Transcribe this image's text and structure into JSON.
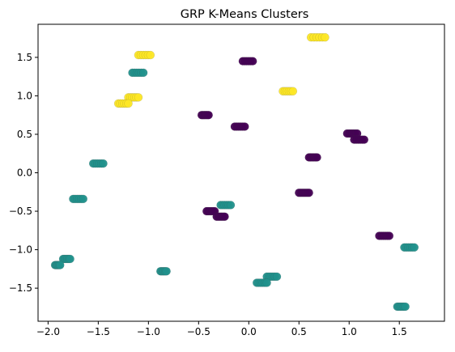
{
  "chart_data": {
    "type": "scatter",
    "title": "GRP K-Means Clusters",
    "xlabel": "",
    "ylabel": "",
    "xlim": [
      -2.1,
      1.95
    ],
    "ylim": [
      -1.93,
      1.93
    ],
    "xticks": [
      -2.0,
      -1.5,
      -1.0,
      -0.5,
      0.0,
      0.5,
      1.0,
      1.5
    ],
    "xtick_labels": [
      "−2.0",
      "−1.5",
      "−1.0",
      "−0.5",
      "0.0",
      "0.5",
      "1.0",
      "1.5"
    ],
    "yticks": [
      -1.5,
      -1.0,
      -0.5,
      0.0,
      0.5,
      1.0,
      1.5
    ],
    "ytick_labels": [
      "−1.5",
      "−1.0",
      "−0.5",
      "0.0",
      "0.5",
      "1.0",
      "1.5"
    ],
    "grid": false,
    "colors": {
      "cluster_0": "#440154",
      "cluster_1": "#21918c",
      "cluster_2": "#fde725"
    },
    "groups": [
      {
        "xmin": 0.62,
        "xmax": 0.76,
        "y": 1.76,
        "cluster": 2
      },
      {
        "xmin": -1.1,
        "xmax": -0.98,
        "y": 1.53,
        "cluster": 2
      },
      {
        "xmin": -0.06,
        "xmax": 0.04,
        "y": 1.45,
        "cluster": 0
      },
      {
        "xmin": -1.16,
        "xmax": -1.05,
        "y": 1.3,
        "cluster": 1
      },
      {
        "xmin": 0.34,
        "xmax": 0.44,
        "y": 1.06,
        "cluster": 2
      },
      {
        "xmin": -1.2,
        "xmax": -1.1,
        "y": 0.98,
        "cluster": 2
      },
      {
        "xmin": -1.3,
        "xmax": -1.2,
        "y": 0.9,
        "cluster": 2
      },
      {
        "xmin": -0.47,
        "xmax": -0.4,
        "y": 0.75,
        "cluster": 0
      },
      {
        "xmin": -0.14,
        "xmax": -0.04,
        "y": 0.6,
        "cluster": 0
      },
      {
        "xmin": 0.98,
        "xmax": 1.08,
        "y": 0.51,
        "cluster": 0
      },
      {
        "xmin": 1.05,
        "xmax": 1.15,
        "y": 0.43,
        "cluster": 0
      },
      {
        "xmin": 0.6,
        "xmax": 0.68,
        "y": 0.2,
        "cluster": 0
      },
      {
        "xmin": -1.55,
        "xmax": -1.45,
        "y": 0.12,
        "cluster": 1
      },
      {
        "xmin": 0.5,
        "xmax": 0.6,
        "y": -0.26,
        "cluster": 0
      },
      {
        "xmin": -1.75,
        "xmax": -1.65,
        "y": -0.34,
        "cluster": 1
      },
      {
        "xmin": -0.28,
        "xmax": -0.18,
        "y": -0.42,
        "cluster": 1
      },
      {
        "xmin": -0.42,
        "xmax": -0.34,
        "y": -0.5,
        "cluster": 0
      },
      {
        "xmin": -0.32,
        "xmax": -0.24,
        "y": -0.57,
        "cluster": 0
      },
      {
        "xmin": 1.3,
        "xmax": 1.4,
        "y": -0.82,
        "cluster": 0
      },
      {
        "xmin": 1.55,
        "xmax": 1.65,
        "y": -0.97,
        "cluster": 1
      },
      {
        "xmin": -1.85,
        "xmax": -1.78,
        "y": -1.12,
        "cluster": 1
      },
      {
        "xmin": -1.93,
        "xmax": -1.88,
        "y": -1.2,
        "cluster": 1
      },
      {
        "xmin": -0.88,
        "xmax": -0.82,
        "y": -1.28,
        "cluster": 1
      },
      {
        "xmin": 0.18,
        "xmax": 0.28,
        "y": -1.35,
        "cluster": 1
      },
      {
        "xmin": 0.08,
        "xmax": 0.18,
        "y": -1.43,
        "cluster": 1
      },
      {
        "xmin": 1.48,
        "xmax": 1.56,
        "y": -1.74,
        "cluster": 1
      }
    ]
  }
}
